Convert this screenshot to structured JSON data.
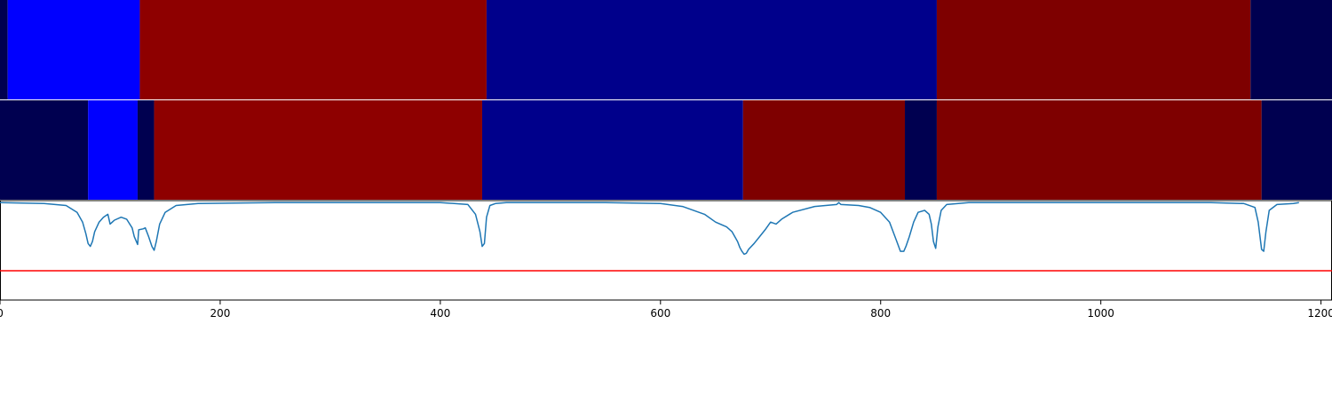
{
  "chart_data": {
    "type": "segmentation-strips-with-line",
    "x_axis": {
      "range": [
        0,
        1210
      ],
      "ticks": [
        0,
        200,
        400,
        600,
        800,
        1000,
        1200
      ],
      "tick_labels": [
        "0",
        "200",
        "400",
        "600",
        "800",
        "1000",
        "1200"
      ]
    },
    "segment_colors": {
      "navy_dark": "#000050",
      "blue": "#0000ff",
      "navy": "#00008b",
      "red": "#8e0000",
      "dark_red": "#7e0000"
    },
    "strips": [
      {
        "segments": [
          {
            "start": 0,
            "end": 7,
            "color": "navy_dark"
          },
          {
            "start": 7,
            "end": 127,
            "color": "blue"
          },
          {
            "start": 127,
            "end": 442,
            "color": "red"
          },
          {
            "start": 442,
            "end": 851,
            "color": "navy"
          },
          {
            "start": 851,
            "end": 1136,
            "color": "dark_red"
          },
          {
            "start": 1136,
            "end": 1210,
            "color": "navy_dark"
          }
        ]
      },
      {
        "segments": [
          {
            "start": 0,
            "end": 80,
            "color": "navy_dark"
          },
          {
            "start": 80,
            "end": 125,
            "color": "blue"
          },
          {
            "start": 125,
            "end": 140,
            "color": "navy_dark"
          },
          {
            "start": 140,
            "end": 438,
            "color": "red"
          },
          {
            "start": 438,
            "end": 675,
            "color": "navy"
          },
          {
            "start": 675,
            "end": 822,
            "color": "dark_red"
          },
          {
            "start": 822,
            "end": 851,
            "color": "navy_dark"
          },
          {
            "start": 851,
            "end": 1146,
            "color": "dark_red"
          },
          {
            "start": 1146,
            "end": 1210,
            "color": "navy_dark"
          }
        ]
      }
    ],
    "line_panel": {
      "ylim": [
        -1.0,
        0.02
      ],
      "line_color": "#1f77b4",
      "threshold": {
        "y": -0.7,
        "color": "#ff0000"
      },
      "series": {
        "x": [
          0,
          40,
          60,
          70,
          75,
          78,
          80,
          82,
          84,
          86,
          90,
          94,
          98,
          100,
          104,
          110,
          115,
          120,
          122,
          125,
          126,
          130,
          132,
          135,
          138,
          140,
          142,
          145,
          150,
          160,
          180,
          250,
          400,
          425,
          432,
          436,
          438,
          440,
          442,
          445,
          450,
          460,
          550,
          600,
          620,
          640,
          650,
          660,
          665,
          670,
          672,
          674,
          676,
          678,
          680,
          685,
          690,
          695,
          700,
          705,
          710,
          720,
          740,
          760,
          762,
          764,
          780,
          790,
          800,
          808,
          814,
          818,
          821,
          823,
          826,
          830,
          834,
          840,
          844,
          846,
          848,
          850,
          852,
          855,
          860,
          880,
          900,
          1100,
          1130,
          1140,
          1143,
          1146,
          1148,
          1150,
          1153,
          1160,
          1175,
          1180
        ],
        "y": [
          0,
          -0.01,
          -0.03,
          -0.1,
          -0.2,
          -0.32,
          -0.42,
          -0.45,
          -0.4,
          -0.3,
          -0.2,
          -0.15,
          -0.12,
          -0.22,
          -0.18,
          -0.15,
          -0.17,
          -0.26,
          -0.35,
          -0.43,
          -0.28,
          -0.27,
          -0.26,
          -0.35,
          -0.45,
          -0.49,
          -0.4,
          -0.22,
          -0.1,
          -0.03,
          -0.01,
          0,
          0,
          -0.02,
          -0.12,
          -0.3,
          -0.45,
          -0.42,
          -0.15,
          -0.03,
          -0.01,
          0,
          0,
          -0.01,
          -0.04,
          -0.12,
          -0.2,
          -0.25,
          -0.3,
          -0.4,
          -0.46,
          -0.5,
          -0.53,
          -0.52,
          -0.48,
          -0.42,
          -0.35,
          -0.28,
          -0.2,
          -0.22,
          -0.17,
          -0.1,
          -0.04,
          -0.02,
          0,
          -0.02,
          -0.03,
          -0.05,
          -0.1,
          -0.2,
          -0.38,
          -0.5,
          -0.5,
          -0.45,
          -0.35,
          -0.2,
          -0.1,
          -0.08,
          -0.12,
          -0.22,
          -0.4,
          -0.47,
          -0.25,
          -0.08,
          -0.02,
          0,
          0,
          0,
          -0.01,
          -0.05,
          -0.2,
          -0.48,
          -0.5,
          -0.3,
          -0.08,
          -0.02,
          -0.01,
          0
        ]
      }
    }
  }
}
